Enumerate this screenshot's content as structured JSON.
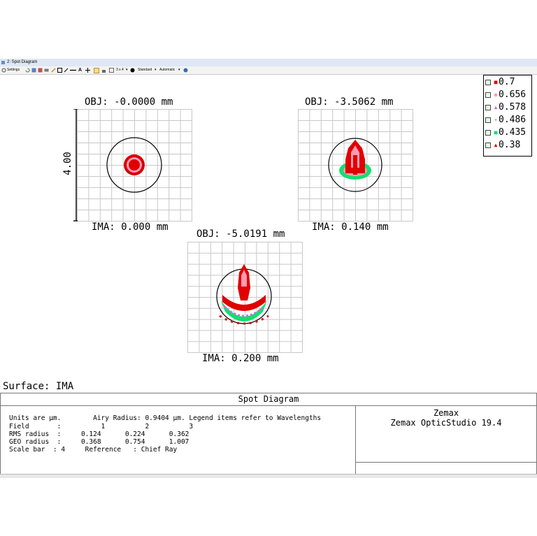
{
  "window": {
    "title": "2: Spot Diagram"
  },
  "toolbar": {
    "settings_label": "Settings",
    "layout_label": "3 x 4",
    "mode_label": "Standard",
    "scale_label": "Automatic"
  },
  "colors": {
    "w07": "#e00000",
    "w0656": "#ff9ab0",
    "w0578": "#d070d0",
    "w0486": "#8a8aff",
    "w0435": "#10e070",
    "w038": "#e00000",
    "grid": "#c8c8c8"
  },
  "plots": {
    "field1": {
      "obj": "OBJ: -0.0000 mm",
      "ima": "IMA: 0.000 mm"
    },
    "field2": {
      "obj": "OBJ: -3.5062 mm",
      "ima": "IMA: 0.140 mm"
    },
    "field3": {
      "obj": "OBJ: -5.0191 mm",
      "ima": "IMA: 0.200 mm"
    },
    "scale_bar_label": "4.00"
  },
  "legend": [
    {
      "label": "0.7",
      "marker": "square"
    },
    {
      "label": "0.656",
      "marker": "circle"
    },
    {
      "label": "0.578",
      "marker": "triangle"
    },
    {
      "label": "0.486",
      "marker": "plus"
    },
    {
      "label": "0.435",
      "marker": "square"
    },
    {
      "label": "0.38",
      "marker": "triangle"
    }
  ],
  "surface_label": "Surface: IMA",
  "info": {
    "header": "Spot Diagram",
    "line1": "Units are µm.        Airy Radius: 0.9404 µm. Legend items refer to Wavelengths",
    "line2": "Field       :          1          2          3",
    "line3": "RMS radius  :     0.124      0.224      0.362",
    "line4": "GEO radius  :     0.368      0.754      1.007",
    "line5": "Scale bar  : 4     Reference   : Chief Ray",
    "company": "Zemax",
    "product": "Zemax OpticStudio 19.4"
  }
}
